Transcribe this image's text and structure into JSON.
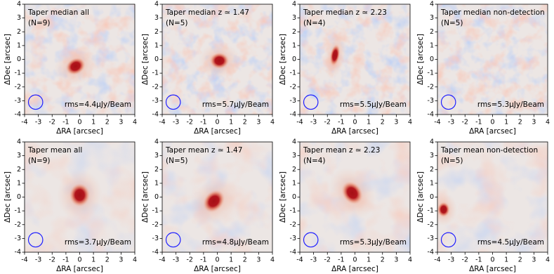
{
  "chart_data": [
    {
      "type": "image",
      "title": "Taper median all",
      "subtitle": "(N=9)",
      "annotation": "rms=4.4μJy/Beam",
      "xlabel": "ΔRA [arcsec]",
      "ylabel": "ΔDec [arcsec]",
      "xlim": [
        -4,
        4
      ],
      "ylim": [
        -4,
        4
      ],
      "xticks": [
        -4,
        -3,
        -2,
        -1,
        0,
        1,
        2,
        3,
        4
      ],
      "yticks": [
        -4,
        -3,
        -2,
        -1,
        0,
        1,
        2,
        3,
        4
      ]
    },
    {
      "type": "image",
      "title": "Taper median z ≃ 1.47",
      "subtitle": "(N=5)",
      "annotation": "rms=5.7μJy/Beam",
      "xlabel": "ΔRA [arcsec]",
      "ylabel": "ΔDec [arcsec]",
      "xlim": [
        -4,
        4
      ],
      "ylim": [
        -4,
        4
      ],
      "xticks": [
        -4,
        -3,
        -2,
        -1,
        0,
        1,
        2,
        3,
        4
      ],
      "yticks": [
        -4,
        -3,
        -2,
        -1,
        0,
        1,
        2,
        3,
        4
      ]
    },
    {
      "type": "image",
      "title": "Taper median z ≃ 2.23",
      "subtitle": "(N=4)",
      "annotation": "rms=5.5μJy/Beam",
      "xlabel": "ΔRA [arcsec]",
      "ylabel": "ΔDec [arcsec]",
      "xlim": [
        -4,
        4
      ],
      "ylim": [
        -4,
        4
      ],
      "xticks": [
        -4,
        -3,
        -2,
        -1,
        0,
        1,
        2,
        3,
        4
      ],
      "yticks": [
        -4,
        -3,
        -2,
        -1,
        0,
        1,
        2,
        3,
        4
      ]
    },
    {
      "type": "image",
      "title": "Taper median non-detection",
      "subtitle": "(N=5)",
      "annotation": "rms=5.3μJy/Beam",
      "xlabel": "ΔRA [arcsec]",
      "ylabel": "ΔDec [arcsec]",
      "xlim": [
        -4,
        4
      ],
      "ylim": [
        -4,
        4
      ],
      "xticks": [
        -4,
        -3,
        -2,
        -1,
        0,
        1,
        2,
        3,
        4
      ],
      "yticks": [
        -4,
        -3,
        -2,
        -1,
        0,
        1,
        2,
        3,
        4
      ]
    },
    {
      "type": "image",
      "title": "Taper mean all",
      "subtitle": "(N=9)",
      "annotation": "rms=3.7μJy/Beam",
      "xlabel": "ΔRA [arcsec]",
      "ylabel": "ΔDec [arcsec]",
      "xlim": [
        -4,
        4
      ],
      "ylim": [
        -4,
        4
      ],
      "xticks": [
        -4,
        -3,
        -2,
        -1,
        0,
        1,
        2,
        3,
        4
      ],
      "yticks": [
        -4,
        -3,
        -2,
        -1,
        0,
        1,
        2,
        3,
        4
      ]
    },
    {
      "type": "image",
      "title": "Taper mean z ≃ 1.47",
      "subtitle": "(N=5)",
      "annotation": "rms=4.8μJy/Beam",
      "xlabel": "ΔRA [arcsec]",
      "ylabel": "ΔDec [arcsec]",
      "xlim": [
        -4,
        4
      ],
      "ylim": [
        -4,
        4
      ],
      "xticks": [
        -4,
        -3,
        -2,
        -1,
        0,
        1,
        2,
        3,
        4
      ],
      "yticks": [
        -4,
        -3,
        -2,
        -1,
        0,
        1,
        2,
        3,
        4
      ]
    },
    {
      "type": "image",
      "title": "Taper mean z ≃ 2.23",
      "subtitle": "(N=4)",
      "annotation": "rms=5.3μJy/Beam",
      "xlabel": "ΔRA [arcsec]",
      "ylabel": "ΔDec [arcsec]",
      "xlim": [
        -4,
        4
      ],
      "ylim": [
        -4,
        4
      ],
      "xticks": [
        -4,
        -3,
        -2,
        -1,
        0,
        1,
        2,
        3,
        4
      ],
      "yticks": [
        -4,
        -3,
        -2,
        -1,
        0,
        1,
        2,
        3,
        4
      ]
    },
    {
      "type": "image",
      "title": "Taper mean non-detection",
      "subtitle": "(N=5)",
      "annotation": "rms=4.5μJy/Beam",
      "xlabel": "ΔRA [arcsec]",
      "ylabel": "ΔDec [arcsec]",
      "xlim": [
        -4,
        4
      ],
      "ylim": [
        -4,
        4
      ],
      "xticks": [
        -4,
        -3,
        -2,
        -1,
        0,
        1,
        2,
        3,
        4
      ],
      "yticks": [
        -4,
        -3,
        -2,
        -1,
        0,
        1,
        2,
        3,
        4
      ]
    }
  ]
}
